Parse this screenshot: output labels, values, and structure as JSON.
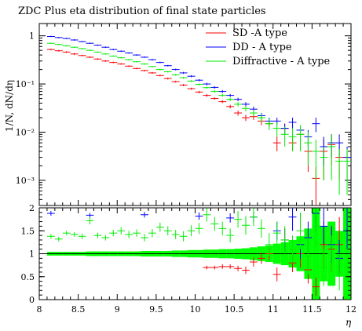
{
  "chart_data": {
    "title": "ZDC Plus eta distribution of final state particles",
    "xlabel": "η",
    "ylabel": "1/N, dN/dη",
    "legend_position": "top-right",
    "colors": {
      "SD -A type": "#ff0000",
      "DD - A type": "#0000ff",
      "Diffractive - A type": "#00ee00",
      "band": "#00ff00"
    },
    "upper": {
      "type": "scatter",
      "y_scale": "log",
      "xlim": [
        8,
        12
      ],
      "ylim": [
        0.0003,
        1.8
      ],
      "xbin_width": 0.1,
      "yticks": [
        {
          "v": 1,
          "label": "1"
        },
        {
          "v": 0.1,
          "label": "10⁻¹"
        },
        {
          "v": 0.01,
          "label": "10⁻²"
        },
        {
          "v": 0.001,
          "label": "10⁻³"
        }
      ],
      "series": [
        {
          "name": "SD -A type",
          "x": [
            8.15,
            8.25,
            8.35,
            8.45,
            8.55,
            8.65,
            8.75,
            8.85,
            8.95,
            9.05,
            9.15,
            9.25,
            9.35,
            9.45,
            9.55,
            9.65,
            9.75,
            9.85,
            9.95,
            10.05,
            10.15,
            10.25,
            10.35,
            10.45,
            10.55,
            10.65,
            10.75,
            10.85,
            10.95,
            11.05,
            11.15,
            11.25,
            11.35,
            11.45,
            11.55,
            11.65,
            11.75,
            11.85,
            11.95
          ],
          "y": [
            0.52,
            0.49,
            0.46,
            0.42,
            0.39,
            0.36,
            0.33,
            0.3,
            0.28,
            0.26,
            0.235,
            0.21,
            0.19,
            0.17,
            0.15,
            0.13,
            0.112,
            0.095,
            0.08,
            0.068,
            0.058,
            0.05,
            0.043,
            0.034,
            0.025,
            0.02,
            0.021,
            0.017,
            0.015,
            0.006,
            0.012,
            0.006,
            0.009,
            0.004,
            0.0011,
            0.004,
            0.0055,
            0.003,
            0.003
          ],
          "yerr": [
            0.02,
            0.02,
            0.02,
            0.02,
            0.015,
            0.015,
            0.013,
            0.012,
            0.011,
            0.01,
            0.009,
            0.008,
            0.008,
            0.007,
            0.006,
            0.006,
            0.005,
            0.005,
            0.004,
            0.004,
            0.004,
            0.003,
            0.003,
            0.003,
            0.003,
            0.003,
            0.003,
            0.003,
            0.002,
            0.002,
            0.003,
            0.002,
            0.003,
            0.0025,
            0.0008,
            0.003,
            0.0035,
            0.002,
            0.002
          ]
        },
        {
          "name": "DD - A type",
          "x": [
            8.15,
            8.25,
            8.35,
            8.45,
            8.55,
            8.65,
            8.75,
            8.85,
            8.95,
            9.05,
            9.15,
            9.25,
            9.35,
            9.45,
            9.55,
            9.65,
            9.75,
            9.85,
            9.95,
            10.05,
            10.15,
            10.25,
            10.35,
            10.45,
            10.55,
            10.65,
            10.75,
            10.85,
            10.95,
            11.05,
            11.15,
            11.25,
            11.35,
            11.45,
            11.55,
            11.65,
            11.75,
            11.85,
            11.95
          ],
          "y": [
            0.97,
            0.92,
            0.88,
            0.82,
            0.76,
            0.7,
            0.64,
            0.58,
            0.52,
            0.48,
            0.44,
            0.4,
            0.36,
            0.32,
            0.28,
            0.24,
            0.2,
            0.17,
            0.145,
            0.12,
            0.1,
            0.085,
            0.07,
            0.058,
            0.048,
            0.038,
            0.03,
            0.022,
            0.017,
            0.017,
            0.012,
            0.016,
            0.011,
            0.008,
            0.015,
            0.005,
            0.006,
            0.006,
            0.003
          ],
          "yerr": [
            0.03,
            0.03,
            0.03,
            0.03,
            0.025,
            0.02,
            0.02,
            0.02,
            0.018,
            0.017,
            0.015,
            0.014,
            0.012,
            0.011,
            0.01,
            0.009,
            0.008,
            0.008,
            0.007,
            0.006,
            0.006,
            0.005,
            0.005,
            0.004,
            0.004,
            0.004,
            0.004,
            0.003,
            0.003,
            0.003,
            0.003,
            0.004,
            0.003,
            0.003,
            0.005,
            0.003,
            0.003,
            0.003,
            0.002
          ]
        },
        {
          "name": "Diffractive - A type",
          "x": [
            8.15,
            8.25,
            8.35,
            8.45,
            8.55,
            8.65,
            8.75,
            8.85,
            8.95,
            9.05,
            9.15,
            9.25,
            9.35,
            9.45,
            9.55,
            9.65,
            9.75,
            9.85,
            9.95,
            10.05,
            10.15,
            10.25,
            10.35,
            10.45,
            10.55,
            10.65,
            10.75,
            10.85,
            10.95,
            11.05,
            11.15,
            11.25,
            11.35,
            11.45,
            11.55,
            11.65,
            11.75,
            11.85,
            11.95
          ],
          "y": [
            0.7,
            0.66,
            0.62,
            0.58,
            0.54,
            0.5,
            0.46,
            0.42,
            0.38,
            0.35,
            0.32,
            0.29,
            0.26,
            0.23,
            0.2,
            0.18,
            0.155,
            0.135,
            0.115,
            0.098,
            0.084,
            0.07,
            0.058,
            0.048,
            0.038,
            0.031,
            0.025,
            0.02,
            0.015,
            0.012,
            0.009,
            0.008,
            0.009,
            0.006,
            0.004,
            0.003,
            0.005,
            0.0025,
            0.0025
          ],
          "yerr": [
            0.02,
            0.02,
            0.02,
            0.02,
            0.018,
            0.016,
            0.015,
            0.014,
            0.013,
            0.012,
            0.011,
            0.01,
            0.009,
            0.008,
            0.008,
            0.007,
            0.006,
            0.006,
            0.005,
            0.005,
            0.004,
            0.004,
            0.004,
            0.004,
            0.004,
            0.004,
            0.004,
            0.004,
            0.004,
            0.004,
            0.004,
            0.004,
            0.005,
            0.004,
            0.003,
            0.002,
            0.004,
            0.002,
            0.002
          ]
        }
      ]
    },
    "lower": {
      "type": "scatter",
      "xlim": [
        8,
        12
      ],
      "ylim": [
        0,
        2
      ],
      "yticks": [
        {
          "v": 0,
          "label": "0"
        },
        {
          "v": 0.5,
          "label": "0.5"
        },
        {
          "v": 1,
          "label": "1"
        },
        {
          "v": 1.5,
          "label": "1.5"
        },
        {
          "v": 2,
          "label": "2"
        }
      ],
      "xticks": [
        {
          "v": 8,
          "label": "8"
        },
        {
          "v": 8.5,
          "label": "8.5"
        },
        {
          "v": 9,
          "label": "9"
        },
        {
          "v": 9.5,
          "label": "9.5"
        },
        {
          "v": 10,
          "label": "10"
        },
        {
          "v": 10.5,
          "label": "10.5"
        },
        {
          "v": 11,
          "label": "11"
        },
        {
          "v": 11.5,
          "label": "11.5"
        },
        {
          "v": 12,
          "label": "12"
        }
      ],
      "band_x": [
        8.15,
        8.25,
        8.35,
        8.45,
        8.55,
        8.65,
        8.75,
        8.85,
        8.95,
        9.05,
        9.15,
        9.25,
        9.35,
        9.45,
        9.55,
        9.65,
        9.75,
        9.85,
        9.95,
        10.05,
        10.15,
        10.25,
        10.35,
        10.45,
        10.55,
        10.65,
        10.75,
        10.85,
        10.95,
        11.05,
        11.15,
        11.25,
        11.35,
        11.45,
        11.55,
        11.65,
        11.75,
        11.85,
        11.95
      ],
      "band_halfwidth": [
        0.04,
        0.04,
        0.04,
        0.04,
        0.04,
        0.05,
        0.05,
        0.05,
        0.05,
        0.05,
        0.05,
        0.05,
        0.06,
        0.06,
        0.06,
        0.06,
        0.07,
        0.07,
        0.08,
        0.08,
        0.09,
        0.09,
        0.1,
        0.1,
        0.11,
        0.12,
        0.14,
        0.16,
        0.18,
        0.22,
        0.25,
        0.3,
        0.38,
        0.55,
        1.0,
        0.6,
        0.7,
        0.5,
        1.0
      ],
      "series": [
        {
          "name": "SD -A type",
          "x": [
            10.15,
            10.25,
            10.35,
            10.45,
            10.55,
            10.65,
            10.75,
            10.85,
            10.95,
            11.05,
            11.15,
            11.25,
            11.35,
            11.45,
            11.55,
            11.65,
            11.75,
            11.85
          ],
          "y": [
            0.7,
            0.7,
            0.72,
            0.72,
            0.68,
            0.64,
            0.82,
            0.9,
            1.0,
            0.55,
            1.3,
            0.8,
            1.0,
            0.65,
            0.28,
            1.2,
            1.1,
            1.2
          ],
          "yerr": [
            0.04,
            0.04,
            0.05,
            0.05,
            0.06,
            0.08,
            0.1,
            0.12,
            0.14,
            0.15,
            0.25,
            0.2,
            0.3,
            0.3,
            0.2,
            0.5,
            0.5,
            0.6
          ]
        },
        {
          "name": "DD - A type",
          "x": [
            8.15,
            8.65,
            9.35,
            10.05,
            10.45,
            10.75,
            11.05,
            11.15,
            11.25,
            11.35,
            11.45,
            11.55,
            11.65,
            11.75,
            11.85,
            11.95
          ],
          "y": [
            1.88,
            1.84,
            1.85,
            1.82,
            1.78,
            1.8,
            1.5,
            1.3,
            1.8,
            1.2,
            1.35,
            1.88,
            1.6,
            1.2,
            0.9,
            1.5
          ],
          "yerr": [
            0.05,
            0.05,
            0.06,
            0.08,
            0.1,
            0.12,
            0.2,
            0.25,
            0.3,
            0.3,
            0.35,
            0.4,
            0.4,
            0.4,
            0.4,
            0.5
          ]
        },
        {
          "name": "Diffractive - A type",
          "x": [
            8.15,
            8.25,
            8.35,
            8.45,
            8.55,
            8.65,
            8.75,
            8.85,
            8.95,
            9.05,
            9.15,
            9.25,
            9.35,
            9.45,
            9.55,
            9.65,
            9.75,
            9.85,
            9.95,
            10.05,
            10.15,
            10.25,
            10.35,
            10.45,
            10.55,
            10.65,
            10.75,
            10.85,
            10.95,
            11.05,
            11.15,
            11.25,
            11.35,
            11.45,
            11.55,
            11.65,
            11.75,
            11.85,
            11.95
          ],
          "y": [
            1.38,
            1.32,
            1.45,
            1.42,
            1.38,
            1.72,
            1.4,
            1.35,
            1.45,
            1.5,
            1.42,
            1.45,
            1.35,
            1.45,
            1.58,
            1.5,
            1.42,
            1.38,
            1.5,
            1.55,
            1.85,
            1.65,
            1.55,
            1.4,
            1.75,
            1.62,
            1.8,
            1.55,
            1.2,
            1.45,
            1.3,
            1.1,
            1.5,
            0.95,
            1.6,
            0.7,
            1.0,
            0.6,
            0.7
          ],
          "yerr": [
            0.05,
            0.05,
            0.05,
            0.05,
            0.06,
            0.08,
            0.06,
            0.06,
            0.07,
            0.08,
            0.08,
            0.08,
            0.08,
            0.09,
            0.1,
            0.1,
            0.1,
            0.11,
            0.12,
            0.12,
            0.15,
            0.15,
            0.15,
            0.15,
            0.18,
            0.2,
            0.2,
            0.2,
            0.25,
            0.25,
            0.3,
            0.3,
            0.4,
            0.4,
            0.45,
            0.4,
            0.4,
            0.4,
            0.4
          ]
        }
      ]
    }
  }
}
